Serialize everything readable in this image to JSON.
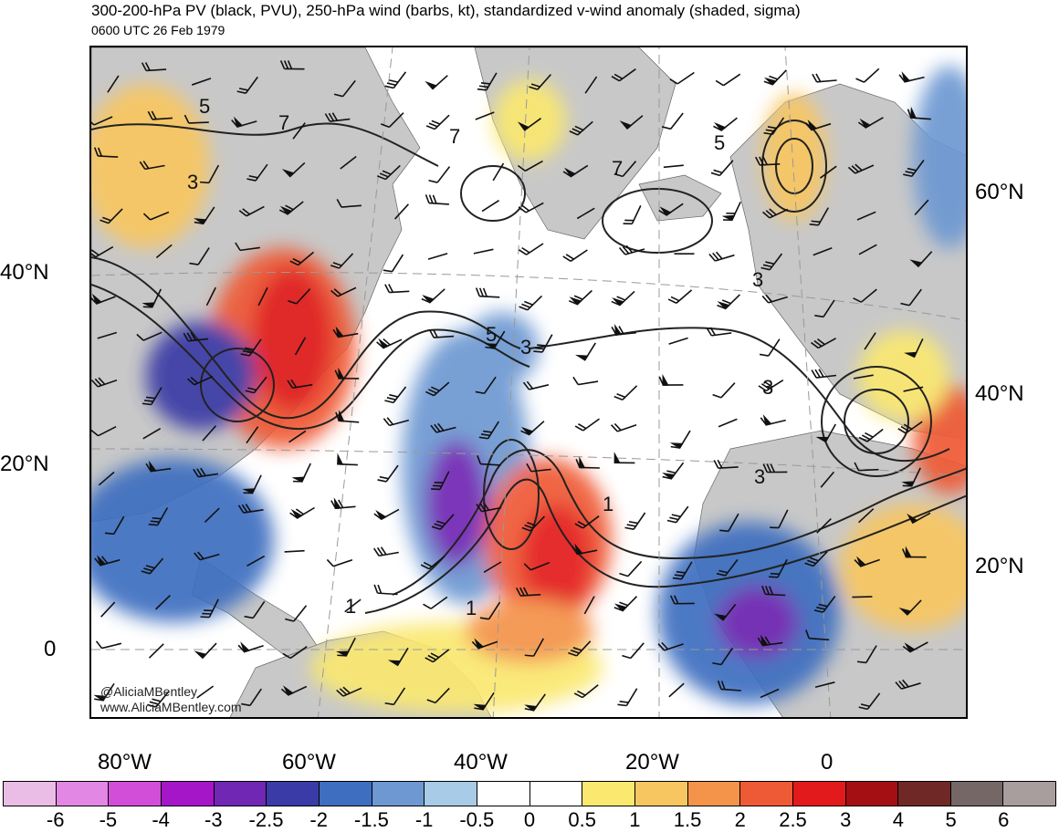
{
  "header": {
    "title": "300-200-hPa PV (black, PVU), 250-hPa wind (barbs, kt), standardized v-wind anomaly (shaded, sigma)",
    "time": "0600 UTC 26 Feb 1979"
  },
  "map": {
    "left_lat_labels": [
      "40°N",
      "20°N",
      "0"
    ],
    "right_lat_labels": [
      "60°N",
      "40°N",
      "20°N"
    ],
    "lon_labels": [
      "80°W",
      "60°W",
      "40°W",
      "20°W",
      "0"
    ],
    "contour_labels": [
      "5",
      "7",
      "3",
      "7",
      "7",
      "5",
      "5",
      "3",
      "3",
      "3",
      "3",
      "1",
      "1",
      "1"
    ],
    "land_color": "#c8c8c8",
    "ocean_color": "#ffffff"
  },
  "credit": {
    "handle": "@AliciaMBentley",
    "url": "www.AliciaMBentley.com"
  },
  "colorbar": {
    "colors": [
      "#eabde6",
      "#e387e5",
      "#d24ed8",
      "#a616c9",
      "#6f27b4",
      "#3a3ba6",
      "#3e6ec0",
      "#6d98d2",
      "#a8cbe8",
      "#ffffff",
      "#ffffff",
      "#fae86f",
      "#f8c660",
      "#f4934a",
      "#ef5a36",
      "#e31a1c",
      "#a40f13",
      "#6f2826",
      "#756766",
      "#a89e9e"
    ],
    "labels": [
      "-6",
      "-5",
      "-4",
      "-3",
      "-2.5",
      "-2",
      "-1.5",
      "-1",
      "-0.5",
      "0",
      "0.5",
      "1",
      "1.5",
      "2",
      "2.5",
      "3",
      "4",
      "5",
      "6"
    ]
  }
}
